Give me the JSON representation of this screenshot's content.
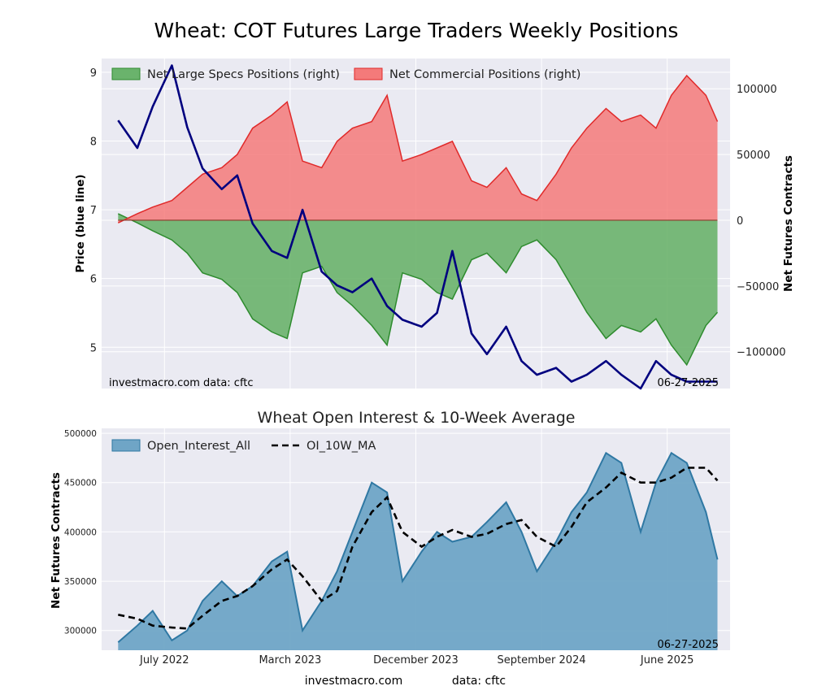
{
  "title": "Wheat: COT Futures Large Traders Weekly Positions",
  "footer": {
    "left": "investmacro.com",
    "right": "data: cftc"
  },
  "colors": {
    "panel_bg": "#eaeaf2",
    "price": "#00007f",
    "specs_fill": "#6ab36c",
    "specs_line": "#2e8b2e",
    "comm_fill": "#f47a7a",
    "comm_line": "#e02a2a",
    "oi_fill": "#6fa5c6",
    "oi_line": "#2f78a3",
    "ma_line": "#000000"
  },
  "chart_data": [
    {
      "type": "area",
      "title": "",
      "ylabel_left": "Price (blue line)",
      "ylabel_right": "Net Futures Contracts",
      "ylim_left": [
        4.4,
        9.2
      ],
      "ylim_right": [
        -128000,
        123000
      ],
      "yticks_left": [
        "9",
        "8",
        "7",
        "6",
        "5"
      ],
      "yticks_right": [
        "100000",
        "50000",
        "0",
        "−50000",
        "−100000"
      ],
      "legend": [
        "Net Large Specs Positions (right)",
        "Net Commercial Positions (right)"
      ],
      "legend_position": "top-left",
      "annotation_left": "investmacro.com   data: cftc",
      "annotation_right": "06-27-2025",
      "grid": true,
      "x": [
        "2022-07-01",
        "2022-08-05",
        "2022-09-02",
        "2022-10-07",
        "2022-11-04",
        "2022-12-02",
        "2023-01-06",
        "2023-02-03",
        "2023-03-03",
        "2023-04-07",
        "2023-05-05",
        "2023-06-02",
        "2023-07-07",
        "2023-08-04",
        "2023-09-01",
        "2023-10-06",
        "2023-11-03",
        "2023-12-01",
        "2024-01-05",
        "2024-02-02",
        "2024-03-01",
        "2024-04-05",
        "2024-05-03",
        "2024-06-07",
        "2024-07-05",
        "2024-08-02",
        "2024-09-06",
        "2024-10-04",
        "2024-11-01",
        "2024-12-06",
        "2025-01-03",
        "2025-02-07",
        "2025-03-07",
        "2025-04-04",
        "2025-05-02",
        "2025-06-06",
        "2025-06-27"
      ],
      "series": [
        {
          "name": "Price",
          "values": [
            8.3,
            7.9,
            8.5,
            9.1,
            8.2,
            7.6,
            7.3,
            7.5,
            6.8,
            6.4,
            6.3,
            7.0,
            6.1,
            5.9,
            5.8,
            6.0,
            5.6,
            5.4,
            5.3,
            5.5,
            6.4,
            5.2,
            4.9,
            5.3,
            4.8,
            4.6,
            4.7,
            4.5,
            4.6,
            4.8,
            4.6,
            4.4,
            4.8,
            4.6,
            4.5,
            4.5,
            4.5
          ]
        },
        {
          "name": "Net Large Specs Positions (right)",
          "values": [
            5000,
            -2000,
            -8000,
            -15000,
            -25000,
            -40000,
            -45000,
            -55000,
            -75000,
            -85000,
            -90000,
            -40000,
            -35000,
            -55000,
            -65000,
            -80000,
            -95000,
            -40000,
            -45000,
            -55000,
            -60000,
            -30000,
            -25000,
            -40000,
            -20000,
            -15000,
            -30000,
            -50000,
            -70000,
            -90000,
            -80000,
            -85000,
            -75000,
            -95000,
            -110000,
            -80000,
            -70000
          ]
        },
        {
          "name": "Net Commercial Positions (right)",
          "values": [
            -2000,
            5000,
            10000,
            15000,
            25000,
            35000,
            40000,
            50000,
            70000,
            80000,
            90000,
            45000,
            40000,
            60000,
            70000,
            75000,
            95000,
            45000,
            50000,
            55000,
            60000,
            30000,
            25000,
            40000,
            20000,
            15000,
            35000,
            55000,
            70000,
            85000,
            75000,
            80000,
            70000,
            95000,
            110000,
            95000,
            75000
          ]
        }
      ]
    },
    {
      "type": "area",
      "title": "Wheat Open Interest & 10-Week Average",
      "ylabel": "Net Futures Contracts",
      "ylim": [
        280000,
        505000
      ],
      "yticks": [
        "500000",
        "450000",
        "400000",
        "350000",
        "300000"
      ],
      "xticks": [
        "July 2022",
        "March 2023",
        "December 2023",
        "September 2024",
        "June 2025"
      ],
      "legend": [
        "Open_Interest_All",
        "OI_10W_MA"
      ],
      "legend_position": "top-left",
      "annotation_right": "06-27-2025",
      "grid": true,
      "x": [
        "2022-07-01",
        "2022-08-05",
        "2022-09-02",
        "2022-10-07",
        "2022-11-04",
        "2022-12-02",
        "2023-01-06",
        "2023-02-03",
        "2023-03-03",
        "2023-04-07",
        "2023-05-05",
        "2023-06-02",
        "2023-07-07",
        "2023-08-04",
        "2023-09-01",
        "2023-10-06",
        "2023-11-03",
        "2023-12-01",
        "2024-01-05",
        "2024-02-02",
        "2024-03-01",
        "2024-04-05",
        "2024-05-03",
        "2024-06-07",
        "2024-07-05",
        "2024-08-02",
        "2024-09-06",
        "2024-10-04",
        "2024-11-01",
        "2024-12-06",
        "2025-01-03",
        "2025-02-07",
        "2025-03-07",
        "2025-04-04",
        "2025-05-02",
        "2025-06-06",
        "2025-06-27"
      ],
      "series": [
        {
          "name": "Open_Interest_All",
          "values": [
            288000,
            305000,
            320000,
            290000,
            300000,
            330000,
            350000,
            335000,
            345000,
            370000,
            380000,
            300000,
            330000,
            360000,
            400000,
            450000,
            440000,
            350000,
            380000,
            400000,
            390000,
            395000,
            410000,
            430000,
            400000,
            360000,
            390000,
            420000,
            440000,
            480000,
            470000,
            400000,
            450000,
            480000,
            470000,
            420000,
            372000
          ]
        },
        {
          "name": "OI_10W_MA",
          "values": [
            316000,
            312000,
            305000,
            303000,
            302000,
            315000,
            330000,
            335000,
            345000,
            362000,
            372000,
            355000,
            330000,
            340000,
            385000,
            420000,
            435000,
            400000,
            385000,
            395000,
            402000,
            395000,
            398000,
            408000,
            412000,
            395000,
            385000,
            405000,
            430000,
            445000,
            460000,
            450000,
            450000,
            455000,
            465000,
            465000,
            452000
          ]
        }
      ]
    }
  ]
}
